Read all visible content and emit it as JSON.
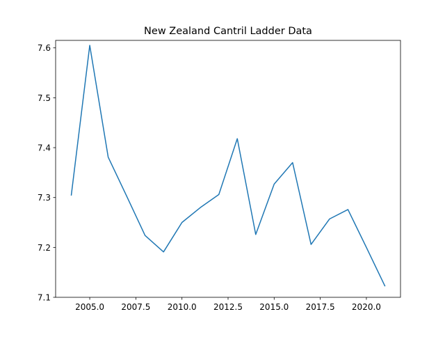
{
  "chart_data": {
    "type": "line",
    "title": "New Zealand Cantril Ladder Data",
    "xlabel": "",
    "ylabel": "",
    "xlim": [
      2003.15,
      2021.85
    ],
    "ylim": [
      7.1,
      7.615
    ],
    "xticks": [
      2005.0,
      2007.5,
      2010.0,
      2012.5,
      2015.0,
      2017.5,
      2020.0
    ],
    "xtick_labels": [
      "2005.0",
      "2007.5",
      "2010.0",
      "2012.5",
      "2015.0",
      "2017.5",
      "2020.0"
    ],
    "yticks": [
      7.1,
      7.2,
      7.3,
      7.4,
      7.5,
      7.6
    ],
    "ytick_labels": [
      "7.1",
      "7.2",
      "7.3",
      "7.4",
      "7.5",
      "7.6"
    ],
    "grid": false,
    "series": [
      {
        "color": "#1f77b4",
        "x": [
          2004,
          2005,
          2006,
          2007,
          2008,
          2009,
          2010,
          2011,
          2012,
          2013,
          2014,
          2015,
          2016,
          2017,
          2018,
          2019,
          2020,
          2021
        ],
        "y": [
          7.305,
          7.605,
          7.381,
          7.303,
          7.224,
          7.191,
          7.25,
          7.28,
          7.306,
          7.418,
          7.226,
          7.327,
          7.37,
          7.206,
          7.257,
          7.276,
          7.2,
          7.123
        ]
      }
    ]
  }
}
